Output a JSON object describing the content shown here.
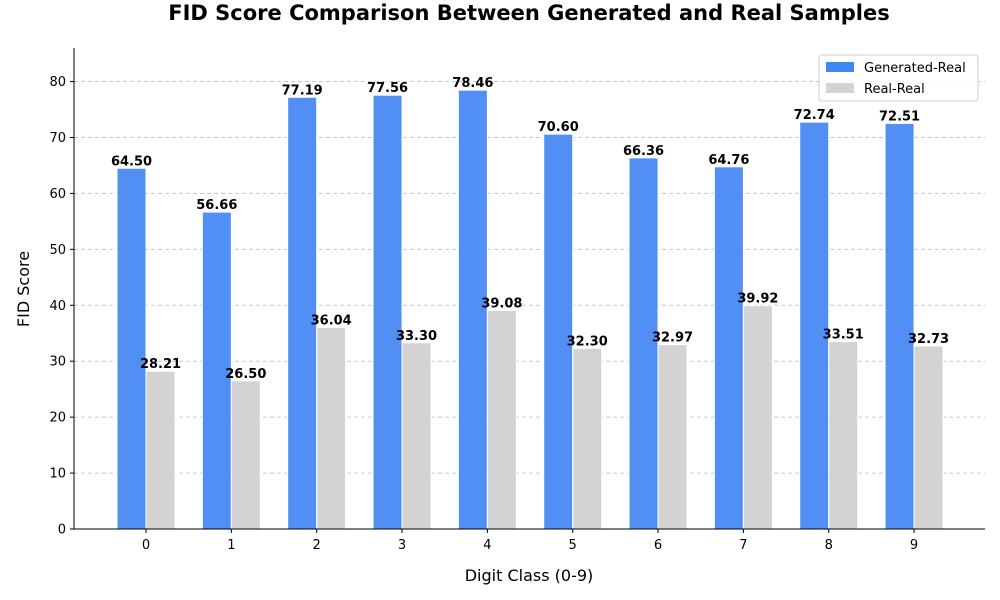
{
  "chart_data": {
    "type": "bar",
    "title": "FID Score Comparison Between Generated and Real Samples",
    "xlabel": "Digit Class (0-9)",
    "ylabel": "FID Score",
    "categories": [
      "0",
      "1",
      "2",
      "3",
      "4",
      "5",
      "6",
      "7",
      "8",
      "9"
    ],
    "series": [
      {
        "name": "Generated-Real",
        "color": "#4285f4",
        "values": [
          64.5,
          56.66,
          77.19,
          77.56,
          78.46,
          70.6,
          66.36,
          64.76,
          72.74,
          72.51
        ],
        "labels": [
          "64.50",
          "56.66",
          "77.19",
          "77.56",
          "78.46",
          "70.60",
          "66.36",
          "64.76",
          "72.74",
          "72.51"
        ]
      },
      {
        "name": "Real-Real",
        "color": "#d3d3d3",
        "values": [
          28.21,
          26.5,
          36.04,
          33.3,
          39.08,
          32.3,
          32.97,
          39.92,
          33.51,
          32.73
        ],
        "labels": [
          "28.21",
          "26.50",
          "36.04",
          "33.30",
          "39.08",
          "32.30",
          "32.97",
          "39.92",
          "33.51",
          "32.73"
        ]
      }
    ],
    "ylim": [
      0,
      86
    ],
    "yticks": [
      0,
      10,
      20,
      30,
      40,
      50,
      60,
      70,
      80
    ],
    "grid": "horizontal dashed",
    "legend_position": "top-right"
  }
}
